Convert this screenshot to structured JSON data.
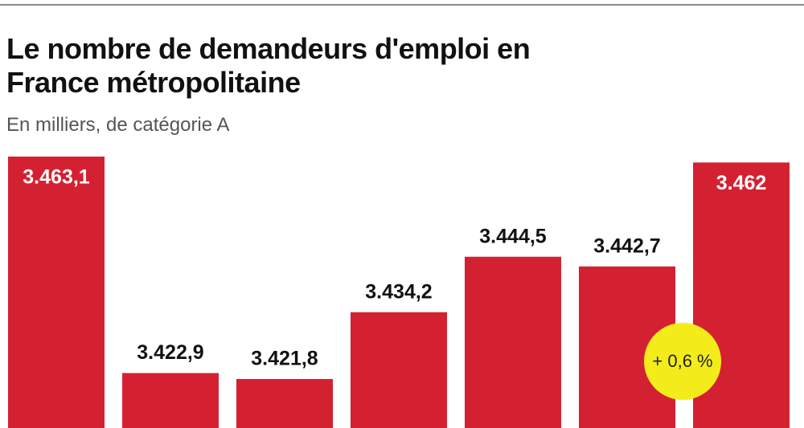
{
  "chart_data": {
    "type": "bar",
    "title": "Le nombre de demandeurs d'emploi en France métropolitaine",
    "subtitle": "En milliers, de catégorie A",
    "values": [
      3463.1,
      3422.9,
      3421.8,
      3434.2,
      3444.5,
      3442.7,
      3462
    ],
    "value_labels": [
      "3.463,1",
      "3.422,9",
      "3.421,8",
      "3.434,2",
      "3.444,5",
      "3.442,7",
      "3.462"
    ],
    "color": "#d42132",
    "ylim": [
      3412.7,
      3463.1
    ],
    "annotations": [
      "+ 0,6 %"
    ]
  }
}
